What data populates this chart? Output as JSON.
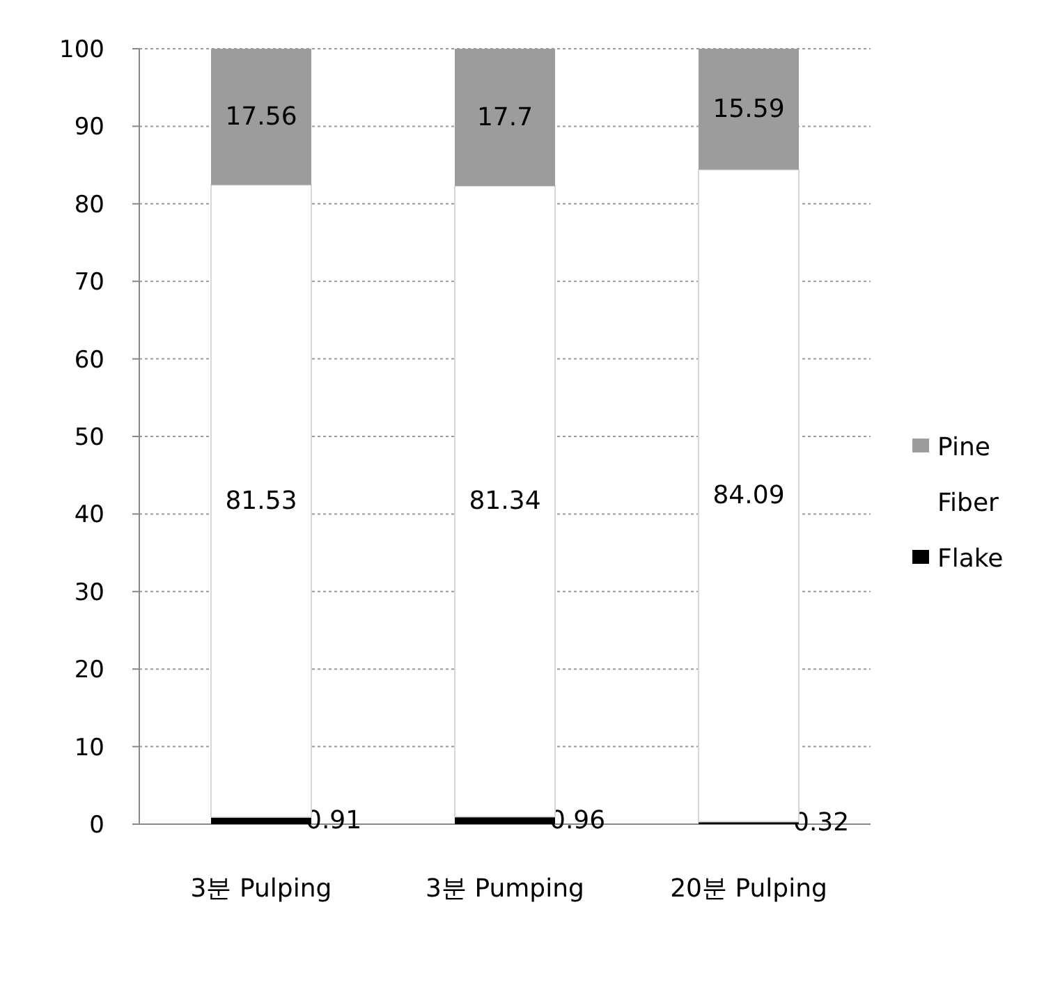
{
  "chart_data": {
    "type": "bar",
    "stacked": true,
    "categories": [
      "3분 Pulping",
      "3분 Pumping",
      "20분 Pulping"
    ],
    "series": [
      {
        "name": "Flake",
        "color": "#000000",
        "values": [
          0.91,
          0.96,
          0.32
        ]
      },
      {
        "name": "Fiber",
        "color": "#ffffff",
        "values": [
          81.53,
          81.34,
          84.09
        ]
      },
      {
        "name": "Pine",
        "color": "#9c9c9c",
        "values": [
          17.56,
          17.7,
          15.59
        ]
      }
    ],
    "ylim": [
      0,
      100
    ],
    "yticks": [
      0,
      10,
      20,
      30,
      40,
      50,
      60,
      70,
      80,
      90,
      100
    ],
    "grid": "y",
    "legend": "right",
    "data_labels": true
  }
}
